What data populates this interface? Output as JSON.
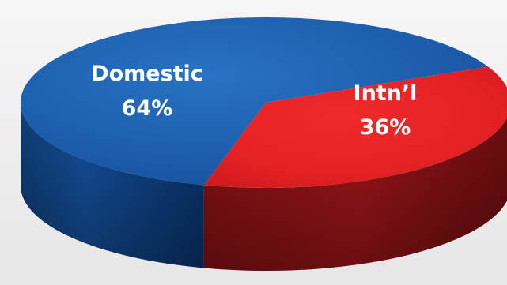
{
  "chart_data": {
    "type": "pie",
    "title": "",
    "slices": [
      {
        "label": "Domestic",
        "value": 64,
        "value_label": "64%",
        "color": "#1b5ca8"
      },
      {
        "label": "Intn’l",
        "value": 36,
        "value_label": "36%",
        "color": "#e52225"
      }
    ],
    "style": "3d",
    "legend": "none"
  }
}
